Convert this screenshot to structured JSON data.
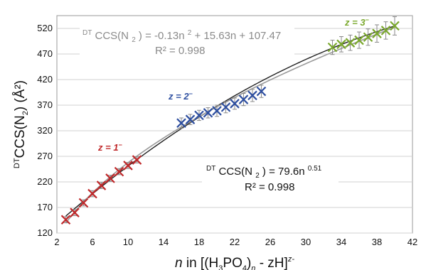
{
  "chart_data": {
    "type": "scatter",
    "xlim": [
      2,
      42
    ],
    "ylim": [
      120,
      545
    ],
    "x_ticks": [
      "2",
      "6",
      "10",
      "14",
      "18",
      "22",
      "26",
      "30",
      "34",
      "38",
      "42"
    ],
    "y_ticks": [
      "120",
      "170",
      "220",
      "270",
      "320",
      "370",
      "420",
      "470",
      "520"
    ],
    "grid": {
      "horizontal": true,
      "vertical": false
    },
    "xlabel": {
      "prefix": "n",
      "middle": " in [(H",
      "sub1": "3",
      "middle2": "PO",
      "sub2": "4",
      "middle3": ")",
      "sub3": "n",
      "middle4": " - zH]",
      "sup": "z-"
    },
    "ylabel": {
      "sup": "DT",
      "main": "CCS(N",
      "sub": "2",
      "end": ") (Å²)"
    },
    "series": [
      {
        "label": "z = 1",
        "label_sup": "−",
        "color": "#c0282a",
        "x": [
          3,
          4,
          5,
          6,
          7,
          8,
          9,
          10,
          11
        ],
        "y": [
          146,
          160,
          179,
          197,
          213,
          227,
          240,
          252,
          263
        ],
        "err": [
          6,
          6,
          6,
          6,
          6,
          6,
          6,
          6,
          6
        ]
      },
      {
        "label": "z = 2",
        "label_sup": "−",
        "color": "#2e4fa0",
        "x": [
          16,
          17,
          18,
          19,
          20,
          21,
          22,
          23,
          24,
          25
        ],
        "y": [
          335,
          342,
          350,
          355,
          359,
          366,
          373,
          381,
          389,
          397
        ],
        "err": [
          10,
          10,
          10,
          10,
          11,
          11,
          11,
          12,
          12,
          12
        ]
      },
      {
        "label": "z = 3",
        "label_sup": "−",
        "color": "#7aa82c",
        "x": [
          33,
          34,
          35,
          36,
          37,
          38,
          39,
          40
        ],
        "y": [
          483,
          489,
          492,
          497,
          503,
          510,
          516,
          525
        ],
        "err": [
          14,
          15,
          15,
          16,
          16,
          17,
          17,
          18
        ]
      }
    ],
    "fits": [
      {
        "kind": "polynomial",
        "coeffs": [
          -0.13,
          15.63,
          107.47
        ],
        "color": "#222222",
        "label_parts": {
          "sup": "DT",
          "body": "CCS(N",
          "sub": "2",
          "rest": ") = -0.13n",
          "sup2": "2",
          "tail": " + 15.63n + 107.47"
        },
        "r2": "R² = 0.998",
        "text_color": "#8a8a8a"
      },
      {
        "kind": "power",
        "a": 79.6,
        "b": 0.51,
        "color": "#9a9a9a",
        "label_parts": {
          "sup": "DT",
          "body": "CCS(N",
          "sub": "2",
          "rest": ")  = 79.6n",
          "sup2": "0.51",
          "tail": ""
        },
        "r2": "R² = 0.998",
        "text_color": "#111111"
      }
    ]
  }
}
